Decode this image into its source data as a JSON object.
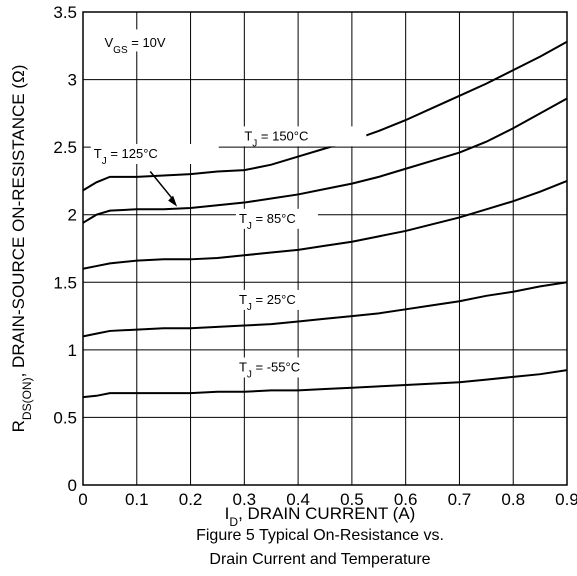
{
  "chart_data": {
    "type": "line",
    "x": [
      0,
      0.025,
      0.05,
      0.1,
      0.15,
      0.2,
      0.25,
      0.3,
      0.35,
      0.4,
      0.45,
      0.5,
      0.55,
      0.6,
      0.65,
      0.7,
      0.75,
      0.8,
      0.85,
      0.9
    ],
    "series": [
      {
        "label": [
          "T",
          "J",
          " = 150°C"
        ],
        "color": "#000000",
        "values": [
          2.18,
          2.24,
          2.28,
          2.28,
          2.29,
          2.3,
          2.32,
          2.33,
          2.37,
          2.43,
          2.49,
          2.55,
          2.62,
          2.7,
          2.79,
          2.88,
          2.97,
          3.07,
          3.17,
          3.28
        ]
      },
      {
        "label": [
          "T",
          "J",
          " = 125°C"
        ],
        "color": "#000000",
        "values": [
          1.94,
          2.0,
          2.03,
          2.04,
          2.04,
          2.05,
          2.07,
          2.09,
          2.12,
          2.15,
          2.19,
          2.23,
          2.28,
          2.34,
          2.4,
          2.46,
          2.54,
          2.64,
          2.75,
          2.86
        ]
      },
      {
        "label": [
          "T",
          "J",
          " = 85°C"
        ],
        "color": "#000000",
        "values": [
          1.6,
          1.62,
          1.64,
          1.66,
          1.67,
          1.67,
          1.68,
          1.7,
          1.72,
          1.74,
          1.77,
          1.8,
          1.84,
          1.88,
          1.93,
          1.98,
          2.04,
          2.1,
          2.17,
          2.25
        ]
      },
      {
        "label": [
          "T",
          "J",
          " = 25°C"
        ],
        "color": "#000000",
        "values": [
          1.1,
          1.12,
          1.14,
          1.15,
          1.16,
          1.16,
          1.17,
          1.18,
          1.19,
          1.21,
          1.23,
          1.25,
          1.27,
          1.3,
          1.33,
          1.36,
          1.4,
          1.43,
          1.47,
          1.5
        ]
      },
      {
        "label": [
          "T",
          "J",
          " = -55°C"
        ],
        "color": "#000000",
        "values": [
          0.65,
          0.66,
          0.68,
          0.68,
          0.68,
          0.68,
          0.69,
          0.69,
          0.7,
          0.7,
          0.71,
          0.72,
          0.73,
          0.74,
          0.75,
          0.76,
          0.78,
          0.8,
          0.82,
          0.85
        ]
      }
    ],
    "annotation": [
      "V",
      "GS",
      " = 10V"
    ],
    "xlabel": [
      "I",
      "D",
      ", DRAIN CURRENT (A)"
    ],
    "ylabel": [
      "R",
      "DS(ON)",
      ",  DRAIN-SOURCE ON-RESISTANCE (Ω)"
    ],
    "caption": [
      "Figure 5 Typical On-Resistance vs.",
      "Drain Current and Temperature"
    ],
    "xlim": [
      0,
      0.9
    ],
    "xticks": [
      0,
      0.1,
      0.2,
      0.3,
      0.4,
      0.5,
      0.6,
      0.7,
      0.8,
      0.9
    ],
    "ylim": [
      0,
      3.5
    ],
    "yticks": [
      0,
      0.5,
      1,
      1.5,
      2,
      2.5,
      3,
      3.5
    ],
    "grid": true
  }
}
